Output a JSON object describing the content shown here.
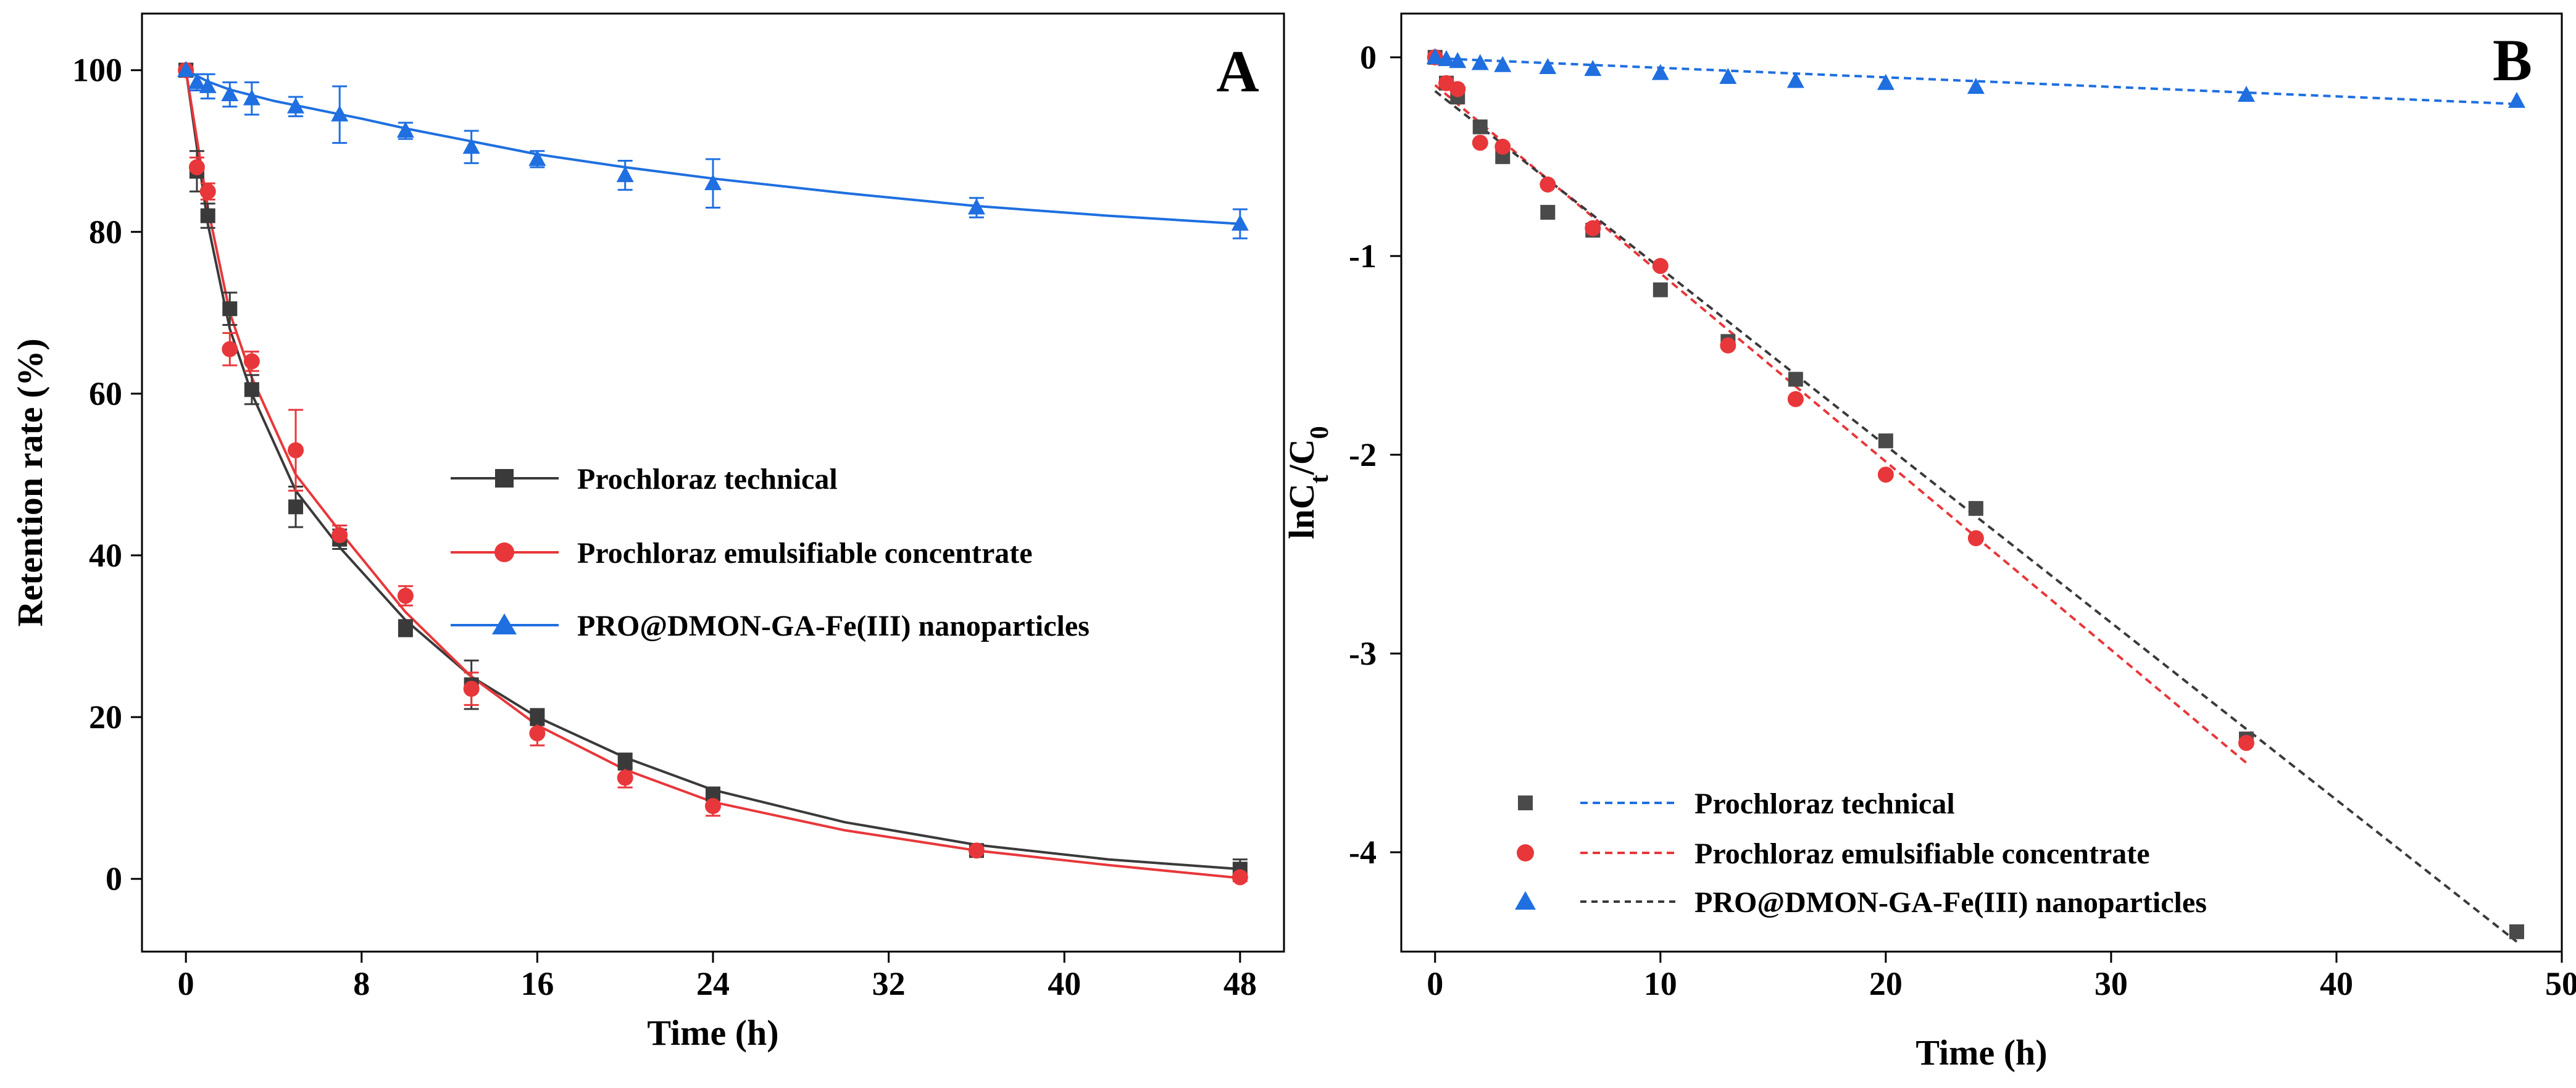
{
  "figure": {
    "panels": [
      "A",
      "B"
    ]
  },
  "chart_data": [
    {
      "panel": "A",
      "type": "line",
      "title": "",
      "xlabel": "Time (h)",
      "ylabel": "Retention rate (%)",
      "xlim": [
        -2,
        50
      ],
      "ylim": [
        -9,
        107
      ],
      "xticks": [
        0,
        8,
        16,
        24,
        32,
        40,
        48
      ],
      "yticks": [
        0,
        20,
        40,
        60,
        80,
        100
      ],
      "legend_position": "center-right",
      "series": [
        {
          "name": "Prochloraz technical",
          "color": "#3a3a3a",
          "marker": "square",
          "points": [
            {
              "x": 0,
              "y": 100,
              "err": 0.8
            },
            {
              "x": 0.5,
              "y": 87.5,
              "err": 2.5
            },
            {
              "x": 1,
              "y": 82,
              "err": 1.5
            },
            {
              "x": 2,
              "y": 70.5,
              "err": 2
            },
            {
              "x": 3,
              "y": 60.5,
              "err": 1.8
            },
            {
              "x": 5,
              "y": 46,
              "err": 2.5
            },
            {
              "x": 7,
              "y": 42,
              "err": 1.2
            },
            {
              "x": 10,
              "y": 31,
              "err": 1
            },
            {
              "x": 13,
              "y": 24,
              "err": 3
            },
            {
              "x": 16,
              "y": 20,
              "err": 1
            },
            {
              "x": 20,
              "y": 14.5,
              "err": 1
            },
            {
              "x": 24,
              "y": 10.5,
              "err": 0.8
            },
            {
              "x": 36,
              "y": 3.5,
              "err": 0.6
            },
            {
              "x": 48,
              "y": 1.2,
              "err": 1.2
            }
          ],
          "fit": [
            {
              "x": 0,
              "y": 100
            },
            {
              "x": 1,
              "y": 81
            },
            {
              "x": 2,
              "y": 68
            },
            {
              "x": 3,
              "y": 60
            },
            {
              "x": 5,
              "y": 48
            },
            {
              "x": 7,
              "y": 41
            },
            {
              "x": 10,
              "y": 32
            },
            {
              "x": 13,
              "y": 25
            },
            {
              "x": 16,
              "y": 20
            },
            {
              "x": 20,
              "y": 15
            },
            {
              "x": 24,
              "y": 11
            },
            {
              "x": 30,
              "y": 7
            },
            {
              "x": 36,
              "y": 4.2
            },
            {
              "x": 42,
              "y": 2.4
            },
            {
              "x": 48,
              "y": 1.2
            }
          ]
        },
        {
          "name": "Prochloraz emulsifiable concentrate",
          "color": "#e8373a",
          "marker": "circle",
          "points": [
            {
              "x": 0,
              "y": 100,
              "err": 0.8
            },
            {
              "x": 0.5,
              "y": 88,
              "err": 1.2
            },
            {
              "x": 1,
              "y": 85,
              "err": 1
            },
            {
              "x": 2,
              "y": 65.5,
              "err": 2
            },
            {
              "x": 3,
              "y": 64,
              "err": 1.2
            },
            {
              "x": 5,
              "y": 53,
              "err": 5
            },
            {
              "x": 7,
              "y": 42.5,
              "err": 1.2
            },
            {
              "x": 10,
              "y": 35,
              "err": 1.2
            },
            {
              "x": 13,
              "y": 23.5,
              "err": 2
            },
            {
              "x": 16,
              "y": 18,
              "err": 1.5
            },
            {
              "x": 20,
              "y": 12.5,
              "err": 1.2
            },
            {
              "x": 24,
              "y": 9,
              "err": 1.2
            },
            {
              "x": 36,
              "y": 3.5,
              "err": 0.6
            },
            {
              "x": 48,
              "y": 0.2,
              "err": 0.5
            }
          ],
          "fit": [
            {
              "x": 0,
              "y": 100
            },
            {
              "x": 1,
              "y": 83
            },
            {
              "x": 2,
              "y": 70
            },
            {
              "x": 3,
              "y": 62
            },
            {
              "x": 5,
              "y": 50
            },
            {
              "x": 7,
              "y": 43
            },
            {
              "x": 10,
              "y": 33
            },
            {
              "x": 13,
              "y": 25
            },
            {
              "x": 16,
              "y": 19
            },
            {
              "x": 20,
              "y": 13.5
            },
            {
              "x": 24,
              "y": 9.5
            },
            {
              "x": 30,
              "y": 6
            },
            {
              "x": 36,
              "y": 3.5
            },
            {
              "x": 42,
              "y": 1.7
            },
            {
              "x": 48,
              "y": 0.1
            }
          ]
        },
        {
          "name": "PRO@DMON-GA-Fe(III) nanoparticles",
          "color": "#1f6fe0",
          "marker": "triangle",
          "points": [
            {
              "x": 0,
              "y": 100,
              "err": 0.8
            },
            {
              "x": 0.5,
              "y": 98.5,
              "err": 1
            },
            {
              "x": 1,
              "y": 98,
              "err": 1.5
            },
            {
              "x": 2,
              "y": 97,
              "err": 1.5
            },
            {
              "x": 3,
              "y": 96.5,
              "err": 2
            },
            {
              "x": 5,
              "y": 95.5,
              "err": 1.2
            },
            {
              "x": 7,
              "y": 94.5,
              "err": 3.5
            },
            {
              "x": 10,
              "y": 92.5,
              "err": 1
            },
            {
              "x": 13,
              "y": 90.5,
              "err": 2
            },
            {
              "x": 16,
              "y": 89,
              "err": 1
            },
            {
              "x": 20,
              "y": 87,
              "err": 1.8
            },
            {
              "x": 24,
              "y": 86,
              "err": 3
            },
            {
              "x": 36,
              "y": 83,
              "err": 1.2
            },
            {
              "x": 48,
              "y": 81,
              "err": 1.8
            }
          ],
          "fit": [
            {
              "x": 0,
              "y": 100
            },
            {
              "x": 1,
              "y": 98.6
            },
            {
              "x": 2,
              "y": 97.6
            },
            {
              "x": 4,
              "y": 96.2
            },
            {
              "x": 6,
              "y": 95.1
            },
            {
              "x": 8,
              "y": 94
            },
            {
              "x": 10,
              "y": 92.8
            },
            {
              "x": 13,
              "y": 91.2
            },
            {
              "x": 16,
              "y": 89.6
            },
            {
              "x": 20,
              "y": 88
            },
            {
              "x": 24,
              "y": 86.6
            },
            {
              "x": 30,
              "y": 84.8
            },
            {
              "x": 36,
              "y": 83.2
            },
            {
              "x": 42,
              "y": 82
            },
            {
              "x": 48,
              "y": 81
            }
          ]
        }
      ]
    },
    {
      "panel": "B",
      "type": "scatter",
      "title": "",
      "xlabel": "Time (h)",
      "ylabel": "lnCt/C0",
      "ylabel_main": "lnC",
      "ylabel_sub1": "t",
      "ylabel_mid": "/C",
      "ylabel_sub2": "0",
      "xlim": [
        -1.5,
        50
      ],
      "ylim": [
        -4.5,
        0.22
      ],
      "xticks": [
        0,
        10,
        20,
        30,
        40,
        50
      ],
      "yticks": [
        0,
        -1,
        -2,
        -3,
        -4
      ],
      "ytick_labels": [
        "0",
        "-1",
        "-2",
        "-3",
        "-4"
      ],
      "legend_position": "bottom-left",
      "legend_labels": [
        "Prochloraz technical",
        "Prochloraz emulsifiable concentrate",
        "PRO@DMON-GA-Fe(III) nanoparticles"
      ],
      "series": [
        {
          "name": "Prochloraz technical",
          "color": "#4a4a4a",
          "marker": "square",
          "points": [
            {
              "x": 0,
              "y": 0
            },
            {
              "x": 0.5,
              "y": -0.13
            },
            {
              "x": 1,
              "y": -0.2
            },
            {
              "x": 2,
              "y": -0.35
            },
            {
              "x": 3,
              "y": -0.5
            },
            {
              "x": 5,
              "y": -0.78
            },
            {
              "x": 7,
              "y": -0.87
            },
            {
              "x": 10,
              "y": -1.17
            },
            {
              "x": 13,
              "y": -1.43
            },
            {
              "x": 16,
              "y": -1.62
            },
            {
              "x": 20,
              "y": -1.93
            },
            {
              "x": 24,
              "y": -2.27
            },
            {
              "x": 36,
              "y": -3.43
            },
            {
              "x": 48,
              "y": -4.4
            }
          ]
        },
        {
          "name": "Prochloraz emulsifiable concentrate",
          "color": "#e8373a",
          "marker": "circle",
          "points": [
            {
              "x": 0,
              "y": 0
            },
            {
              "x": 0.5,
              "y": -0.13
            },
            {
              "x": 1,
              "y": -0.16
            },
            {
              "x": 2,
              "y": -0.43
            },
            {
              "x": 3,
              "y": -0.45
            },
            {
              "x": 5,
              "y": -0.64
            },
            {
              "x": 7,
              "y": -0.86
            },
            {
              "x": 10,
              "y": -1.05
            },
            {
              "x": 13,
              "y": -1.45
            },
            {
              "x": 16,
              "y": -1.72
            },
            {
              "x": 20,
              "y": -2.1
            },
            {
              "x": 24,
              "y": -2.42
            },
            {
              "x": 36,
              "y": -3.45
            }
          ]
        },
        {
          "name": "PRO@DMON-GA-Fe(III) nanoparticles",
          "color": "#1f6fe0",
          "marker": "triangle",
          "points": [
            {
              "x": 0,
              "y": 0
            },
            {
              "x": 0.5,
              "y": -0.01
            },
            {
              "x": 1,
              "y": -0.02
            },
            {
              "x": 2,
              "y": -0.03
            },
            {
              "x": 3,
              "y": -0.04
            },
            {
              "x": 5,
              "y": -0.05
            },
            {
              "x": 7,
              "y": -0.06
            },
            {
              "x": 10,
              "y": -0.08
            },
            {
              "x": 13,
              "y": -0.1
            },
            {
              "x": 16,
              "y": -0.12
            },
            {
              "x": 20,
              "y": -0.13
            },
            {
              "x": 24,
              "y": -0.15
            },
            {
              "x": 36,
              "y": -0.19
            },
            {
              "x": 48,
              "y": -0.22
            }
          ]
        }
      ],
      "fit_lines": [
        {
          "name": "PRO@DMON-GA-Fe(III) fit",
          "color": "#1f6fe0",
          "x0": 0,
          "y0": -0.005,
          "x1": 48,
          "y1": -0.235
        },
        {
          "name": "Prochloraz emulsifiable concentrate fit",
          "color": "#e8373a",
          "x0": 0,
          "y0": -0.14,
          "x1": 36,
          "y1": -3.55
        },
        {
          "name": "Prochloraz technical fit",
          "color": "#3a3a3a",
          "x0": 0,
          "y0": -0.17,
          "x1": 48,
          "y1": -4.45
        }
      ],
      "legend_line_colors": [
        "#1f6fe0",
        "#e8373a",
        "#3a3a3a"
      ]
    }
  ]
}
